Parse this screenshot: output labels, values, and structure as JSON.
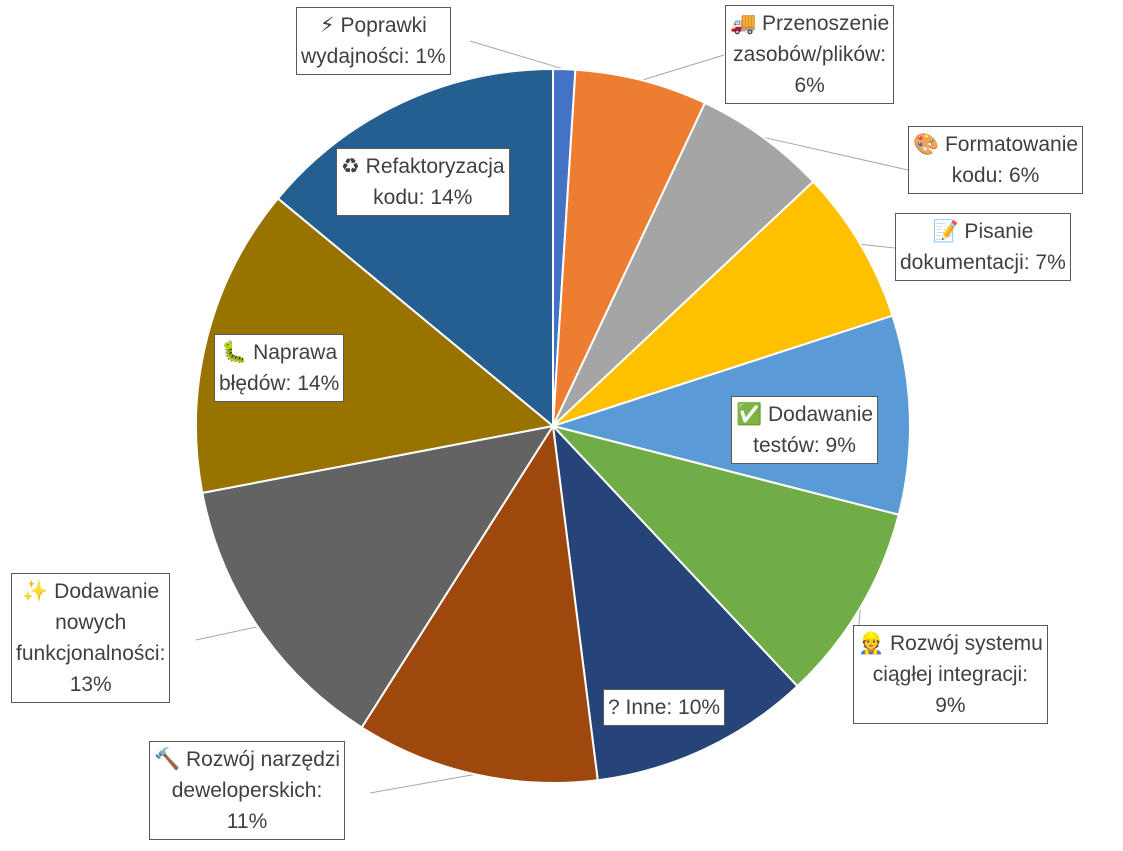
{
  "chart_data": {
    "type": "pie",
    "title": "",
    "slices": [
      {
        "label": "Poprawki wydajności",
        "value": 1,
        "value_label": "1%",
        "color": "#4472C4",
        "icon": "lightning-icon",
        "glyph": "⚡"
      },
      {
        "label": "Przenoszenie zasobów/plików",
        "value": 6,
        "value_label": "6%",
        "color": "#ED7D31",
        "icon": "truck-icon",
        "glyph": "🚚"
      },
      {
        "label": "Formatowanie kodu",
        "value": 6,
        "value_label": "6%",
        "color": "#A5A5A5",
        "icon": "palette-icon",
        "glyph": "🎨"
      },
      {
        "label": "Pisanie dokumentacji",
        "value": 7,
        "value_label": "7%",
        "color": "#FFC000",
        "icon": "memo-icon",
        "glyph": "📝"
      },
      {
        "label": "Dodawanie testów",
        "value": 9,
        "value_label": "9%",
        "color": "#5B9BD5",
        "icon": "check-mark-icon",
        "glyph": "✅"
      },
      {
        "label": "Rozwój systemu ciągłej integracji",
        "value": 9,
        "value_label": "9%",
        "color": "#70AD47",
        "icon": "construction-worker-icon",
        "glyph": "👷"
      },
      {
        "label": "Inne",
        "value": 10,
        "value_label": "10%",
        "color": "#264478",
        "icon": "question-mark-icon",
        "glyph": "?"
      },
      {
        "label": "Rozwój narzędzi deweloperskich",
        "value": 11,
        "value_label": "11%",
        "color": "#9E480E",
        "icon": "hammer-icon",
        "glyph": "🔨"
      },
      {
        "label": "Dodawanie nowych funkcjonalności",
        "value": 13,
        "value_label": "13%",
        "color": "#636363",
        "icon": "sparkles-icon",
        "glyph": "✨"
      },
      {
        "label": "Naprawa błędów",
        "value": 14,
        "value_label": "14%",
        "color": "#997300",
        "icon": "bug-icon",
        "glyph": "🐛"
      },
      {
        "label": "Refaktoryzacja kodu",
        "value": 14,
        "value_label": "14%",
        "color": "#255E91",
        "icon": "recycle-icon",
        "glyph": "♻"
      }
    ],
    "legend": "none",
    "data_labels": "callout"
  },
  "labels": {
    "perf": [
      "⚡ Poprawki",
      "wydajności: 1%"
    ],
    "move": [
      "🚚 Przenoszenie",
      "zasobów/plików:",
      "6%"
    ],
    "fmt": [
      "🎨 Formatowanie",
      "kodu: 6%"
    ],
    "doc": [
      "📝 Pisanie",
      "dokumentacji: 7%"
    ],
    "test": [
      "✅ Dodawanie",
      "testów: 9%"
    ],
    "ci": [
      "👷 Rozwój systemu",
      "ciągłej integracji:",
      "9%"
    ],
    "other": [
      "? Inne: 10%"
    ],
    "tools": [
      "🔨 Rozwój narzędzi",
      "deweloperskich:",
      "11%"
    ],
    "feat": [
      "✨ Dodawanie",
      "nowych",
      "funkcjonalności:",
      "13%"
    ],
    "bugs": [
      "🐛 Naprawa",
      "błędów: 14%"
    ],
    "refac": [
      "♻ Refaktoryzacja",
      "kodu: 14%"
    ]
  }
}
